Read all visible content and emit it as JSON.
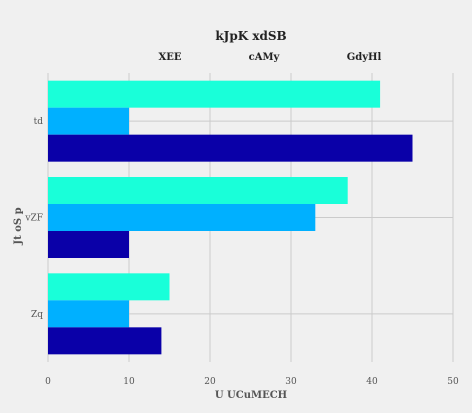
{
  "chart_data": {
    "type": "bar",
    "orientation": "horizontal",
    "title": "",
    "xlabel": "U UCuMECH",
    "ylabel": "Jt oS  p",
    "xlim": [
      0,
      50
    ],
    "xticks": [
      0,
      10,
      20,
      30,
      40,
      50
    ],
    "grid": true,
    "legend_title": "kJpK xdSB",
    "legend_position": "top",
    "categories": [
      "td",
      "vZF",
      "Zq"
    ],
    "series": [
      {
        "name": "XEE",
        "color": "#19ffd9",
        "values": [
          41,
          37,
          15
        ]
      },
      {
        "name": "cAMy",
        "color": "#00b0ff",
        "values": [
          10,
          33,
          10
        ]
      },
      {
        "name": "GdyHl",
        "color": "#0a00a8",
        "values": [
          45,
          10,
          14
        ]
      }
    ]
  }
}
